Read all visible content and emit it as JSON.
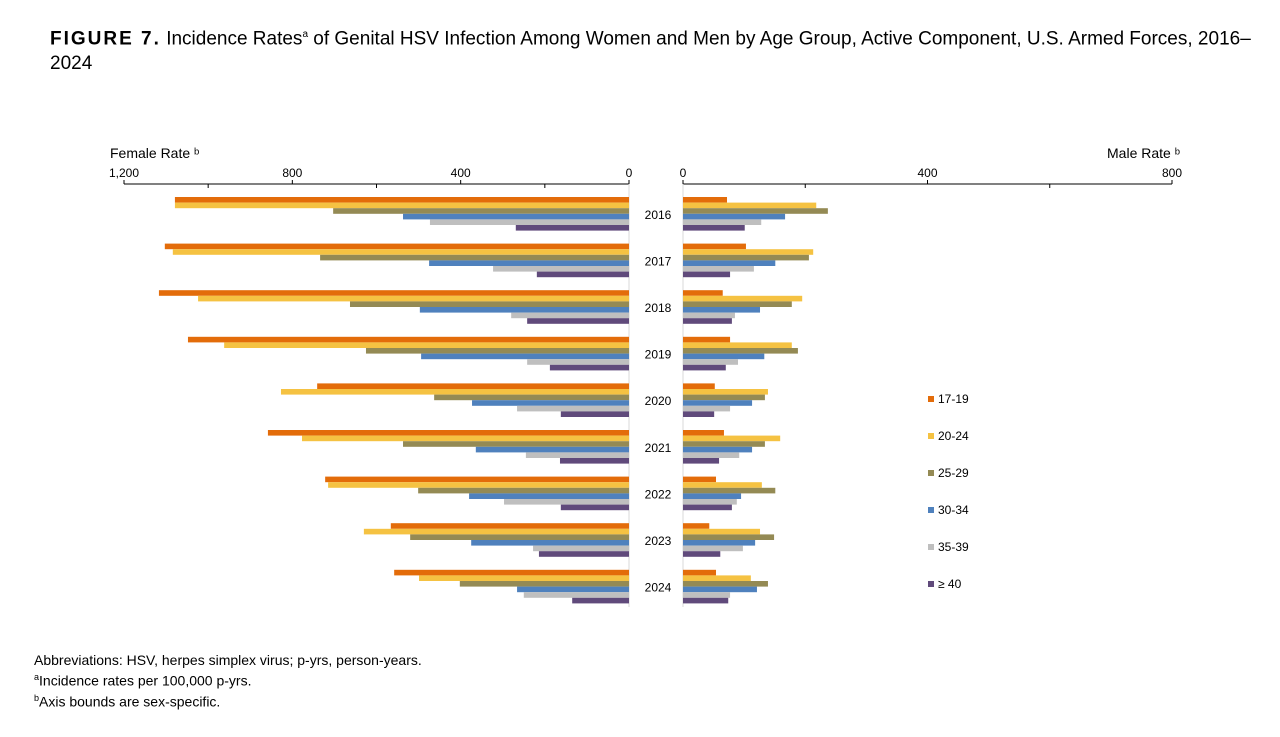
{
  "title": {
    "figure_label": "FIGURE 7.",
    "text_before": "Incidence Rates",
    "sup": "a",
    "text_after": " of Genital HSV Infection Among Women and Men by Age Group, Active Component, U.S. Armed Forces, 2016–2024"
  },
  "notes": {
    "abbreviations": "Abbreviations: HSV, herpes simplex virus; p-yrs, person-years.",
    "a_mark": "a",
    "a_text": "Incidence rates per 100,000 p-yrs.",
    "b_mark": "b",
    "b_text": "Axis bounds are sex-specific."
  },
  "chart_data": [
    {
      "type": "bar",
      "orientation": "horizontal",
      "direction": "reversed",
      "title": "Female Rate ᵇ",
      "xlim": [
        0,
        1200
      ],
      "ticks": [
        "0",
        "400",
        "800",
        "1,200"
      ],
      "tick_values": [
        0,
        400,
        800,
        1200
      ],
      "minor_tick_values": [
        200,
        600,
        1000
      ],
      "categories": [
        "2016",
        "2017",
        "2018",
        "2019",
        "2020",
        "2021",
        "2022",
        "2023",
        "2024"
      ],
      "series": [
        {
          "name": "17-19",
          "values": [
            1079,
            1103,
            1117,
            1048,
            741,
            858,
            722,
            566,
            558
          ]
        },
        {
          "name": "20-24",
          "values": [
            1079,
            1084,
            1024,
            962,
            827,
            777,
            715,
            630,
            499
          ]
        },
        {
          "name": "25-29",
          "values": [
            703,
            734,
            663,
            625,
            463,
            537,
            501,
            520,
            402
          ]
        },
        {
          "name": "30-34",
          "values": [
            537,
            475,
            497,
            494,
            373,
            364,
            380,
            375,
            266
          ]
        },
        {
          "name": "35-39",
          "values": [
            473,
            323,
            280,
            242,
            266,
            245,
            297,
            228,
            250
          ]
        },
        {
          "name": "≥ 40",
          "values": [
            269,
            219,
            242,
            188,
            162,
            164,
            162,
            214,
            135
          ]
        }
      ]
    },
    {
      "type": "bar",
      "orientation": "horizontal",
      "title": "Male Rate ᵇ",
      "xlim": [
        0,
        800
      ],
      "ticks": [
        "0",
        "400",
        "800"
      ],
      "tick_values": [
        0,
        400,
        800
      ],
      "minor_tick_values": [
        200,
        600
      ],
      "categories": [
        "2016",
        "2017",
        "2018",
        "2019",
        "2020",
        "2021",
        "2022",
        "2023",
        "2024"
      ],
      "series": [
        {
          "name": "17-19",
          "values": [
            72,
            103,
            65,
            77,
            52,
            67,
            54,
            43,
            54
          ]
        },
        {
          "name": "20-24",
          "values": [
            218,
            213,
            195,
            178,
            139,
            159,
            129,
            126,
            111
          ]
        },
        {
          "name": "25-29",
          "values": [
            237,
            206,
            178,
            188,
            134,
            134,
            151,
            149,
            139
          ]
        },
        {
          "name": "30-34",
          "values": [
            167,
            151,
            126,
            133,
            113,
            113,
            95,
            118,
            121
          ]
        },
        {
          "name": "35-39",
          "values": [
            128,
            116,
            85,
            90,
            77,
            92,
            88,
            98,
            77
          ]
        },
        {
          "name": "≥ 40",
          "values": [
            101,
            77,
            80,
            70,
            51,
            59,
            80,
            61,
            74
          ]
        }
      ]
    }
  ],
  "colors": [
    "#E36C0A",
    "#F5C242",
    "#948A54",
    "#4F81BD",
    "#BFBFBF",
    "#604A7B"
  ],
  "legend": {
    "placement": "right",
    "items": [
      "17-19",
      "20-24",
      "25-29",
      "30-34",
      "35-39",
      "≥ 40"
    ]
  }
}
